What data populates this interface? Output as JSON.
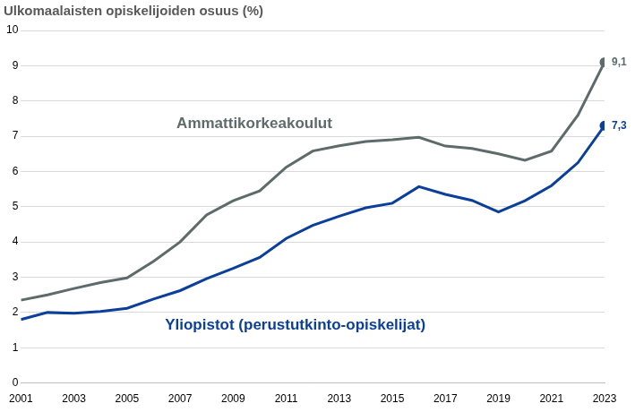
{
  "chart_data": {
    "type": "line",
    "title": "Ulkomaalaisten opiskelijoiden osuus (%)",
    "x": [
      2001,
      2002,
      2003,
      2004,
      2005,
      2006,
      2007,
      2008,
      2009,
      2010,
      2011,
      2012,
      2013,
      2014,
      2015,
      2016,
      2017,
      2018,
      2019,
      2020,
      2021,
      2022,
      2023
    ],
    "series": [
      {
        "name": "Ammattikorkeakoulut",
        "color": "#5f6b6b",
        "values": [
          2.35,
          2.5,
          2.68,
          2.85,
          2.98,
          3.45,
          4.0,
          4.77,
          5.17,
          5.45,
          6.12,
          6.58,
          6.73,
          6.85,
          6.9,
          6.97,
          6.72,
          6.65,
          6.5,
          6.32,
          6.58,
          7.6,
          9.1
        ],
        "value_labels": [
          null,
          null,
          null,
          null,
          null,
          null,
          null,
          null,
          null,
          null,
          null,
          null,
          null,
          null,
          null,
          null,
          null,
          null,
          null,
          null,
          null,
          null,
          "9,1"
        ]
      },
      {
        "name": "Yliopistot (perustutkinto-opiskelijat)",
        "color": "#0b3f9c",
        "values": [
          1.8,
          2.0,
          1.98,
          2.03,
          2.12,
          2.38,
          2.62,
          2.96,
          3.25,
          3.56,
          4.1,
          4.47,
          4.73,
          4.97,
          5.1,
          5.57,
          5.35,
          5.18,
          4.85,
          5.17,
          5.6,
          6.25,
          7.3
        ],
        "value_labels": [
          null,
          null,
          null,
          null,
          null,
          null,
          null,
          null,
          null,
          null,
          null,
          null,
          null,
          null,
          null,
          null,
          null,
          null,
          null,
          null,
          null,
          null,
          "7,3"
        ]
      }
    ],
    "xlim": [
      2001,
      2023
    ],
    "xticks": [
      2001,
      2003,
      2005,
      2007,
      2009,
      2011,
      2013,
      2015,
      2017,
      2019,
      2021,
      2023
    ],
    "ylim": [
      0,
      10
    ],
    "yticks": [
      0,
      1,
      2,
      3,
      4,
      5,
      6,
      7,
      8,
      9,
      10
    ],
    "grid": true,
    "data_labels": true
  }
}
